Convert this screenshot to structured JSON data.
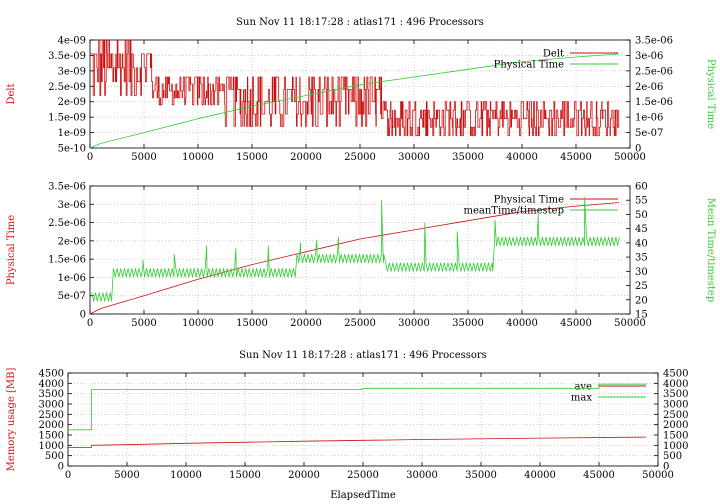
{
  "colors": {
    "red": "#cc1111",
    "green": "#33cc33",
    "frame": "#000000"
  },
  "chart_data": [
    {
      "type": "line",
      "title": "Sun Nov 11 18:17:28 : atlas171 : 496 Processors",
      "xlim": [
        0,
        50000
      ],
      "xticks": [
        0,
        5000,
        10000,
        15000,
        20000,
        25000,
        30000,
        35000,
        40000,
        45000,
        50000
      ],
      "xlabel": "",
      "y_left": {
        "label": "Delt",
        "lim": [
          5e-10,
          4e-09
        ],
        "ticks": [
          5e-10,
          1e-09,
          1.5e-09,
          2e-09,
          2.5e-09,
          3e-09,
          3.5e-09,
          4e-09
        ],
        "tick_labels": [
          "5e-10",
          "1e-09",
          "1.5e-09",
          "2e-09",
          "2.5e-09",
          "3e-09",
          "3.5e-09",
          "4e-09"
        ]
      },
      "y_right": {
        "label": "Physical Time",
        "lim": [
          0,
          3.5e-06
        ],
        "ticks": [
          0,
          5e-07,
          1e-06,
          1.5e-06,
          2e-06,
          2.5e-06,
          3e-06,
          3.5e-06
        ],
        "tick_labels": [
          "0",
          "5e-07",
          "1e-06",
          "1.5e-06",
          "2e-06",
          "2.5e-06",
          "3e-06",
          "3.5e-06"
        ]
      },
      "grid": true,
      "legend": "top-right",
      "series": [
        {
          "name": "Delt",
          "axis": "left",
          "color": "red",
          "style": "noisy",
          "segments": [
            {
              "x": [
                0,
                5800
              ],
              "low": 2.2e-09,
              "high": 4e-09
            },
            {
              "x": [
                5800,
                12500
              ],
              "low": 1.9e-09,
              "high": 2.8e-09
            },
            {
              "x": [
                12500,
                27000
              ],
              "low": 1.2e-09,
              "high": 2.8e-09
            },
            {
              "x": [
                27000,
                49000
              ],
              "low": 9e-10,
              "high": 2e-09
            }
          ]
        },
        {
          "name": "Physical Time",
          "axis": "right",
          "color": "green",
          "style": "line",
          "x": [
            0,
            1000,
            5000,
            10000,
            15000,
            20000,
            25000,
            30000,
            35000,
            40000,
            45000,
            49000
          ],
          "y": [
            0,
            1.5e-07,
            5e-07,
            9.5e-07,
            1.35e-06,
            1.7e-06,
            2.05e-06,
            2.3e-06,
            2.55e-06,
            2.8e-06,
            2.95e-06,
            3.05e-06
          ]
        }
      ]
    },
    {
      "type": "line",
      "title": "",
      "xlim": [
        0,
        50000
      ],
      "xticks": [
        0,
        5000,
        10000,
        15000,
        20000,
        25000,
        30000,
        35000,
        40000,
        45000,
        50000
      ],
      "xlabel": "",
      "y_left": {
        "label": "Physical Time",
        "lim": [
          0,
          3.5e-06
        ],
        "ticks": [
          0,
          5e-07,
          1e-06,
          1.5e-06,
          2e-06,
          2.5e-06,
          3e-06,
          3.5e-06
        ],
        "tick_labels": [
          "0",
          "5e-07",
          "1e-06",
          "1.5e-06",
          "2e-06",
          "2.5e-06",
          "3e-06",
          "3.5e-06"
        ]
      },
      "y_right": {
        "label": "Mean Time/timestep",
        "lim": [
          15,
          60
        ],
        "ticks": [
          15,
          20,
          25,
          30,
          35,
          40,
          45,
          50,
          55,
          60
        ],
        "tick_labels": [
          "15",
          "20",
          "25",
          "30",
          "35",
          "40",
          "45",
          "50",
          "55",
          "60"
        ]
      },
      "grid": true,
      "legend": "top-right",
      "series": [
        {
          "name": "Physical Time",
          "axis": "left",
          "color": "red",
          "style": "line",
          "x": [
            0,
            1000,
            5000,
            10000,
            15000,
            20000,
            25000,
            30000,
            35000,
            40000,
            45000,
            49000
          ],
          "y": [
            0,
            1.5e-07,
            5e-07,
            9.5e-07,
            1.35e-06,
            1.7e-06,
            2.05e-06,
            2.3e-06,
            2.55e-06,
            2.8e-06,
            2.95e-06,
            3.05e-06
          ]
        },
        {
          "name": "meanTime/timestep",
          "axis": "right",
          "color": "green",
          "style": "spiky",
          "segments": [
            {
              "x": [
                0,
                2000
              ],
              "base": 21,
              "amp": 1.5
            },
            {
              "x": [
                2000,
                19000
              ],
              "base": 29.5,
              "amp": 1.5
            },
            {
              "x": [
                19000,
                27200
              ],
              "base": 34.5,
              "amp": 1.5
            },
            {
              "x": [
                27200,
                37300
              ],
              "base": 31.5,
              "amp": 1.5
            },
            {
              "x": [
                37300,
                49000
              ],
              "base": 40.5,
              "amp": 1.5
            }
          ],
          "spikes": [
            {
              "x": 4900,
              "y": 34
            },
            {
              "x": 7800,
              "y": 36
            },
            {
              "x": 10800,
              "y": 39
            },
            {
              "x": 13500,
              "y": 38
            },
            {
              "x": 16500,
              "y": 39
            },
            {
              "x": 19500,
              "y": 40
            },
            {
              "x": 21000,
              "y": 41
            },
            {
              "x": 23000,
              "y": 42
            },
            {
              "x": 27000,
              "y": 55
            },
            {
              "x": 31000,
              "y": 47
            },
            {
              "x": 34000,
              "y": 44
            },
            {
              "x": 37500,
              "y": 48
            },
            {
              "x": 41500,
              "y": 50
            },
            {
              "x": 45800,
              "y": 56
            }
          ]
        }
      ]
    },
    {
      "type": "line",
      "title": "Sun Nov 11 18:17:28 : atlas171 : 496 Processors",
      "xlim": [
        0,
        50000
      ],
      "xticks": [
        0,
        5000,
        10000,
        15000,
        20000,
        25000,
        30000,
        35000,
        40000,
        45000,
        50000
      ],
      "xlabel": "ElapsedTime",
      "y_left": {
        "label": "Memory usage [MB]",
        "lim": [
          0,
          4500
        ],
        "ticks": [
          0,
          500,
          1000,
          1500,
          2000,
          2500,
          3000,
          3500,
          4000,
          4500
        ],
        "tick_labels": [
          "0",
          "500",
          "1000",
          "1500",
          "2000",
          "2500",
          "3000",
          "3500",
          "4000",
          "4500"
        ]
      },
      "y_right": {
        "label": "",
        "lim": [
          0,
          4500
        ],
        "ticks": [
          0,
          500,
          1000,
          1500,
          2000,
          2500,
          3000,
          3500,
          4000,
          4500
        ],
        "tick_labels": [
          "0",
          "500",
          "1000",
          "1500",
          "2000",
          "2500",
          "3000",
          "3500",
          "4000",
          "4500"
        ]
      },
      "grid": true,
      "legend": "top-right",
      "series": [
        {
          "name": "ave",
          "axis": "left",
          "color": "red",
          "style": "line",
          "x": [
            0,
            2000,
            2000,
            5000,
            10000,
            20000,
            30000,
            40000,
            49000
          ],
          "y": [
            900,
            900,
            1000,
            1030,
            1100,
            1200,
            1280,
            1350,
            1400
          ]
        },
        {
          "name": "max",
          "axis": "left",
          "color": "green",
          "style": "line",
          "x": [
            0,
            2000,
            2000,
            20000,
            25000,
            25000,
            45000,
            45000,
            49000
          ],
          "y": [
            1750,
            1750,
            3700,
            3700,
            3700,
            3760,
            3760,
            3960,
            3960
          ]
        }
      ]
    }
  ]
}
